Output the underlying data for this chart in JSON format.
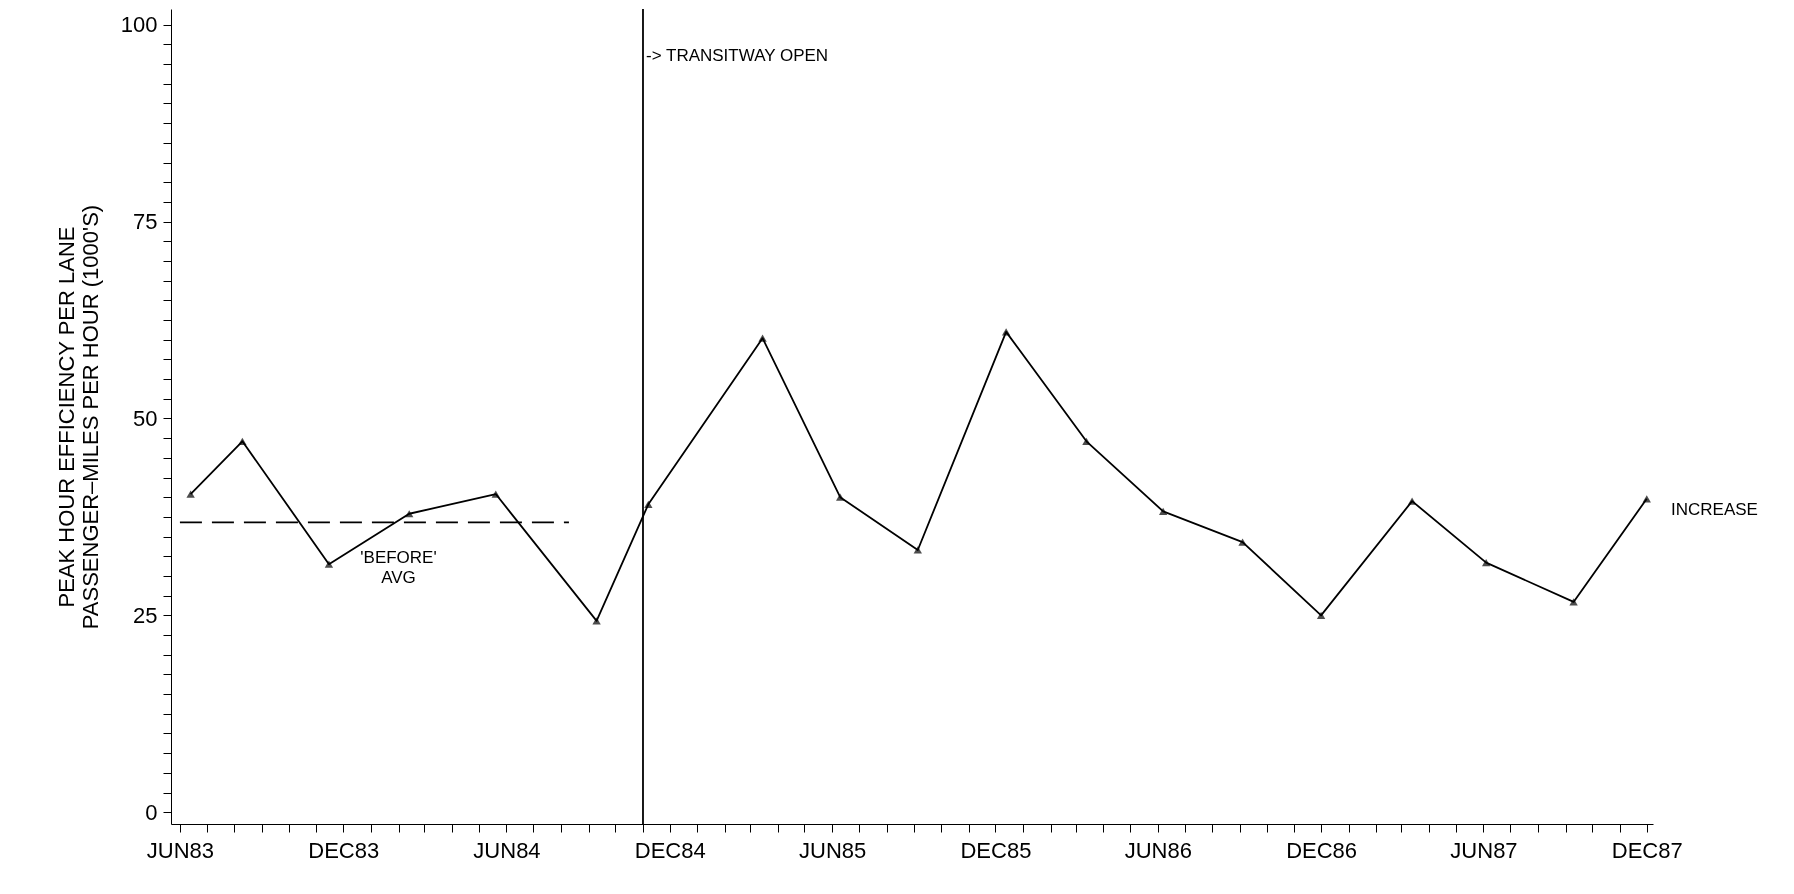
{
  "chart_data": {
    "type": "line",
    "ylabel": "PEAK HOUR EFFICIENCY PER LANE\nPASSENGER–MILES PER HOUR (1000'S)",
    "xlim": [
      "1983-05-22",
      "1987-12-08"
    ],
    "ylim": [
      -1.5,
      102
    ],
    "xticks": [
      {
        "value": "1983-06",
        "label": "JUN83"
      },
      {
        "value": "1983-07",
        "label": null
      },
      {
        "value": "1983-08",
        "label": null
      },
      {
        "value": "1983-09",
        "label": null
      },
      {
        "value": "1983-10",
        "label": null
      },
      {
        "value": "1983-11",
        "label": null
      },
      {
        "value": "1983-12",
        "label": "DEC83"
      },
      {
        "value": "1984-01",
        "label": null
      },
      {
        "value": "1984-02",
        "label": null
      },
      {
        "value": "1984-03",
        "label": null
      },
      {
        "value": "1984-04",
        "label": null
      },
      {
        "value": "1984-05",
        "label": null
      },
      {
        "value": "1984-06",
        "label": "JUN84"
      },
      {
        "value": "1984-07",
        "label": null
      },
      {
        "value": "1984-08",
        "label": null
      },
      {
        "value": "1984-09",
        "label": null
      },
      {
        "value": "1984-10",
        "label": null
      },
      {
        "value": "1984-11",
        "label": null
      },
      {
        "value": "1984-12",
        "label": "DEC84"
      },
      {
        "value": "1985-01",
        "label": null
      },
      {
        "value": "1985-02",
        "label": null
      },
      {
        "value": "1985-03",
        "label": null
      },
      {
        "value": "1985-04",
        "label": null
      },
      {
        "value": "1985-05",
        "label": null
      },
      {
        "value": "1985-06",
        "label": "JUN85"
      },
      {
        "value": "1985-07",
        "label": null
      },
      {
        "value": "1985-08",
        "label": null
      },
      {
        "value": "1985-09",
        "label": null
      },
      {
        "value": "1985-10",
        "label": null
      },
      {
        "value": "1985-11",
        "label": null
      },
      {
        "value": "1985-12",
        "label": "DEC85"
      },
      {
        "value": "1986-01",
        "label": null
      },
      {
        "value": "1986-02",
        "label": null
      },
      {
        "value": "1986-03",
        "label": null
      },
      {
        "value": "1986-04",
        "label": null
      },
      {
        "value": "1986-05",
        "label": null
      },
      {
        "value": "1986-06",
        "label": "JUN86"
      },
      {
        "value": "1986-07",
        "label": null
      },
      {
        "value": "1986-08",
        "label": null
      },
      {
        "value": "1986-09",
        "label": null
      },
      {
        "value": "1986-10",
        "label": null
      },
      {
        "value": "1986-11",
        "label": null
      },
      {
        "value": "1986-12",
        "label": "DEC86"
      },
      {
        "value": "1987-01",
        "label": null
      },
      {
        "value": "1987-02",
        "label": null
      },
      {
        "value": "1987-03",
        "label": null
      },
      {
        "value": "1987-04",
        "label": null
      },
      {
        "value": "1987-05",
        "label": null
      },
      {
        "value": "1987-06",
        "label": "JUN87"
      },
      {
        "value": "1987-07",
        "label": null
      },
      {
        "value": "1987-08",
        "label": null
      },
      {
        "value": "1987-09",
        "label": null
      },
      {
        "value": "1987-10",
        "label": null
      },
      {
        "value": "1987-11",
        "label": null
      },
      {
        "value": "1987-12",
        "label": "DEC87"
      }
    ],
    "yticks": [
      0,
      {
        "value": 2.5,
        "label": null
      },
      {
        "value": 5,
        "label": null
      },
      {
        "value": 7.5,
        "label": null
      },
      {
        "value": 10,
        "label": null
      },
      {
        "value": 12.5,
        "label": null
      },
      {
        "value": 15,
        "label": null
      },
      {
        "value": 17.5,
        "label": null
      },
      {
        "value": 20,
        "label": null
      },
      {
        "value": 22.5,
        "label": null
      },
      25,
      {
        "value": 27.5,
        "label": null
      },
      {
        "value": 30,
        "label": null
      },
      {
        "value": 32.5,
        "label": null
      },
      {
        "value": 35,
        "label": null
      },
      {
        "value": 37.5,
        "label": null
      },
      {
        "value": 40,
        "label": null
      },
      {
        "value": 42.5,
        "label": null
      },
      {
        "value": 45,
        "label": null
      },
      {
        "value": 47.5,
        "label": null
      },
      50,
      {
        "value": 52.5,
        "label": null
      },
      {
        "value": 55,
        "label": null
      },
      {
        "value": 57.5,
        "label": null
      },
      {
        "value": 60,
        "label": null
      },
      {
        "value": 62.5,
        "label": null
      },
      {
        "value": 65,
        "label": null
      },
      {
        "value": 67.5,
        "label": null
      },
      {
        "value": 70,
        "label": null
      },
      {
        "value": 72.5,
        "label": null
      },
      75,
      {
        "value": 77.5,
        "label": null
      },
      {
        "value": 80,
        "label": null
      },
      {
        "value": 82.5,
        "label": null
      },
      {
        "value": 85,
        "label": null
      },
      {
        "value": 87.5,
        "label": null
      },
      {
        "value": 90,
        "label": null
      },
      {
        "value": 92.5,
        "label": null
      },
      {
        "value": 95,
        "label": null
      },
      {
        "value": 97.5,
        "label": null
      },
      100
    ],
    "series": [
      {
        "color": "#000000",
        "marker": "triangle",
        "x": [
          "1983-06-13",
          "1983-08-10",
          "1983-11-15",
          "1984-02-13",
          "1984-05-20",
          "1984-09-10",
          "1984-11-07",
          "1985-03-15",
          "1985-06-10",
          "1985-09-05",
          "1985-12-13",
          "1986-03-13",
          "1986-06-07",
          "1986-09-04",
          "1986-12-01",
          "1987-03-13",
          "1987-06-04",
          "1987-09-10",
          "1987-12-01"
        ],
        "values": [
          40.4,
          47.1,
          31.5,
          37.9,
          40.4,
          24.3,
          39.1,
          60.2,
          40.0,
          33.3,
          61.0,
          47.1,
          38.2,
          34.3,
          25.0,
          39.5,
          31.7,
          26.7,
          39.8
        ]
      },
      {
        "type": "line",
        "color": "#000000",
        "marker": "none",
        "line_style": "dashed",
        "x": [
          "1983-06-01",
          "1984-08-10"
        ],
        "values": [
          36.8,
          36.8
        ]
      }
    ],
    "ref_lines": [
      {
        "axis": "x",
        "value": "1984-11-01",
        "label": "-> TRANSITWAY OPEN",
        "color": "#000000"
      }
    ],
    "annotations": [
      {
        "text": "'BEFORE'\nAVG",
        "x": "1984-02-01",
        "y": 36.8
      },
      "INCREASE"
    ],
    "grid": false
  }
}
